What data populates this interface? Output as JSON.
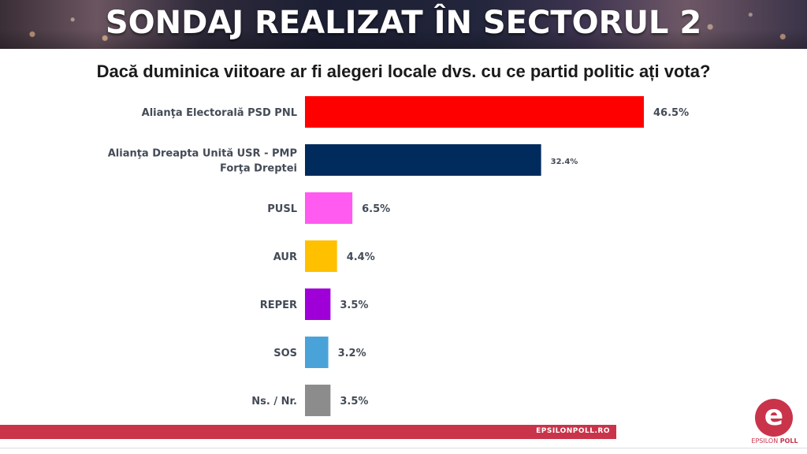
{
  "header": {
    "title": "SONDAJ REALIZAT ÎN SECTORUL 2"
  },
  "question": "Dacă duminica viitoare ar fi alegeri locale dvs. cu ce partid politic ați vota?",
  "footer": {
    "url": "EPSILONPOLL.RO",
    "logo_letter": "e",
    "logo_word1": "EPSILON",
    "logo_word2": "POLL"
  },
  "colors": {
    "accent": "#c9344b"
  },
  "chart_data": {
    "type": "bar",
    "orientation": "horizontal",
    "title": "Dacă duminica viitoare ar fi alegeri locale dvs. cu ce partid politic ați vota?",
    "categories": [
      [
        "Alianţa Electorală PSD PNL"
      ],
      [
        "Alianţa Dreapta Unită USR - PMP",
        "Forţa Dreptei"
      ],
      [
        "PUSL"
      ],
      [
        "AUR"
      ],
      [
        "REPER"
      ],
      [
        "SOS"
      ],
      [
        "Ns. / Nr."
      ]
    ],
    "values": [
      46.5,
      32.4,
      6.5,
      4.4,
      3.5,
      3.2,
      3.5
    ],
    "value_labels": [
      "46.5%",
      "32.4%",
      "6.5%",
      "4.4%",
      "3.5%",
      "3.2%",
      "3.5%"
    ],
    "colors": [
      "#ff0000",
      "#002b5c",
      "#ff5bf0",
      "#ffc000",
      "#a000d8",
      "#4aa3d8",
      "#8c8c8c"
    ],
    "grid": false,
    "legend": "none"
  }
}
